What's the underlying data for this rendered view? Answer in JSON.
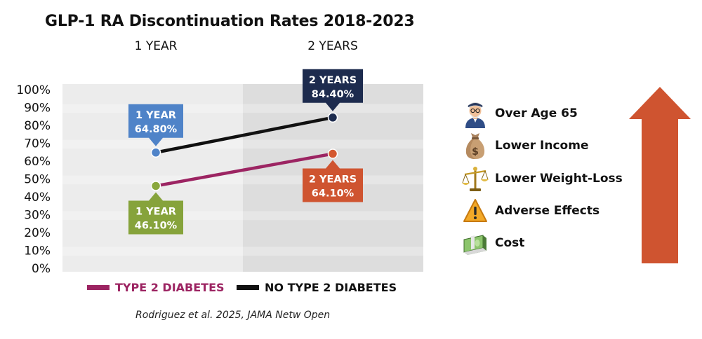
{
  "title": "GLP-1  RA Discontinuation Rates 2018-2023",
  "column_headers": [
    "1 YEAR",
    "2 YEARS"
  ],
  "chart_data": {
    "type": "line",
    "title": "GLP-1  RA Discontinuation Rates 2018-2023",
    "categories": [
      "1 YEAR",
      "2 YEARS"
    ],
    "y_ticks": [
      "0%",
      "10%",
      "20%",
      "30%",
      "40%",
      "50%",
      "60%",
      "70%",
      "80%",
      "90%",
      "100%"
    ],
    "ylim": [
      0,
      100
    ],
    "grid": true,
    "legend_position": "bottom",
    "series": [
      {
        "name": "TYPE 2 DIABETES",
        "color": "#9c2462",
        "marker_colors": [
          "#8aa83c",
          "#d4582f"
        ],
        "values": [
          46.1,
          64.1
        ],
        "callouts": [
          {
            "line1": "1 YEAR",
            "line2": "46.10%",
            "color": "#86a33b",
            "position": "below"
          },
          {
            "line1": "2 YEARS",
            "line2": "64.10%",
            "color": "#cf5430",
            "position": "below"
          }
        ]
      },
      {
        "name": "NO TYPE 2 DIABETES",
        "color": "#111111",
        "marker_colors": [
          "#4f83c8",
          "#1d2b4e"
        ],
        "values": [
          64.8,
          84.4
        ],
        "callouts": [
          {
            "line1": "1 YEAR",
            "line2": "64.80%",
            "color": "#4f83c8",
            "position": "above"
          },
          {
            "line1": "2 YEARS",
            "line2": "84.40%",
            "color": "#1d2b4e",
            "position": "above"
          }
        ]
      }
    ]
  },
  "legend": [
    {
      "label": "TYPE 2 DIABETES",
      "color": "#9c2462"
    },
    {
      "label": "NO TYPE 2 DIABETES",
      "color": "#111111"
    }
  ],
  "factors": [
    {
      "label": "Over Age 65",
      "icon": "elderly-person-icon"
    },
    {
      "label": "Lower Income",
      "icon": "money-bag-icon"
    },
    {
      "label": "Lower Weight-Loss",
      "icon": "balance-scale-icon"
    },
    {
      "label": "Adverse Effects",
      "icon": "warning-icon"
    },
    {
      "label": "Cost",
      "icon": "cash-stack-icon"
    }
  ],
  "arrow_color": "#cf5430",
  "citation": "Rodriguez et al. 2025, JAMA Netw Open"
}
